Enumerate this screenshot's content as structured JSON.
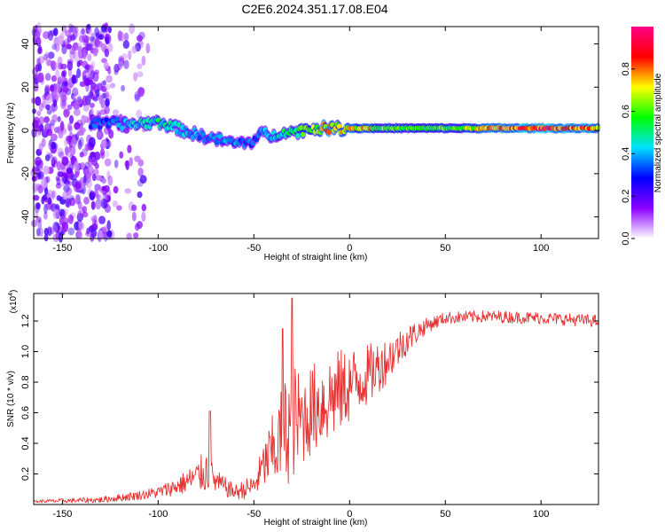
{
  "chart_data": [
    {
      "type": "heatmap",
      "title": "C2E6.2024.351.17.08.E04",
      "xlabel": "Height of straight line (km)",
      "ylabel": "Frequency (Hz)",
      "xlim": [
        -165,
        130
      ],
      "ylim": [
        -50,
        48
      ],
      "xticks": [
        -150,
        -100,
        -50,
        0,
        50,
        100
      ],
      "yticks": [
        40,
        20,
        0,
        -20,
        -40
      ],
      "ridge": {
        "x": [
          -160,
          -150,
          -140,
          -130,
          -120,
          -110,
          -100,
          -90,
          -80,
          -70,
          -60,
          -50,
          -45,
          -40,
          -35,
          -30,
          -20,
          -10,
          0,
          10,
          20,
          40,
          60,
          80,
          100,
          130
        ],
        "y": [
          3,
          3,
          3,
          3,
          3,
          3,
          4,
          1,
          -2,
          -4,
          -6,
          -5,
          -1,
          -3,
          0,
          -1,
          1,
          1,
          1,
          1,
          1,
          1,
          1,
          1,
          1,
          1
        ],
        "amplitude": [
          0.3,
          0.35,
          0.3,
          0.35,
          0.4,
          0.45,
          0.5,
          0.45,
          0.4,
          0.4,
          0.38,
          0.35,
          0.42,
          0.4,
          0.5,
          0.55,
          0.65,
          0.8,
          0.75,
          0.75,
          0.6,
          0.6,
          0.65,
          0.85,
          0.9,
          0.85
        ]
      },
      "colorbar": {
        "label": "Normalized spectral amplitude",
        "ticks": [
          "0.0",
          "0.2",
          "0.4",
          "0.6",
          "0.8"
        ],
        "range": [
          0,
          1
        ],
        "colormap": [
          "#ffffff",
          "#8a00ff",
          "#0000ff",
          "#00e0ff",
          "#00ff00",
          "#ffff00",
          "#ff0000",
          "#ff0088"
        ]
      }
    },
    {
      "type": "line",
      "xlabel": "Height of straight line (km)",
      "ylabel": "SNR (10 * v/v)",
      "multiplier": "(x10",
      "multiplier_exp": "4",
      "xlim": [
        -165,
        130
      ],
      "ylim": [
        0.0,
        1.38
      ],
      "xticks": [
        -150,
        -100,
        -50,
        0,
        50,
        100
      ],
      "yticks": [
        0.2,
        0.4,
        0.6,
        0.8,
        1.0,
        1.2
      ],
      "color": "#e83030",
      "envelope": {
        "x": [
          -165,
          -130,
          -110,
          -100,
          -90,
          -80,
          -75,
          -70,
          -60,
          -50,
          -45,
          -40,
          -35,
          -30,
          -25,
          -20,
          -10,
          0,
          10,
          20,
          30,
          40,
          50,
          70,
          100,
          130
        ],
        "y": [
          0.02,
          0.03,
          0.06,
          0.08,
          0.12,
          0.18,
          0.22,
          0.15,
          0.08,
          0.12,
          0.25,
          0.35,
          0.45,
          0.55,
          0.55,
          0.62,
          0.7,
          0.78,
          0.85,
          0.95,
          1.08,
          1.17,
          1.22,
          1.23,
          1.22,
          1.2
        ],
        "spread": [
          0.01,
          0.02,
          0.03,
          0.04,
          0.06,
          0.1,
          0.15,
          0.08,
          0.05,
          0.08,
          0.15,
          0.25,
          0.35,
          0.4,
          0.3,
          0.3,
          0.3,
          0.25,
          0.2,
          0.15,
          0.1,
          0.05,
          0.04,
          0.04,
          0.04,
          0.04
        ]
      },
      "peaks": [
        {
          "x": -73,
          "y": 0.61
        },
        {
          "x": -30,
          "y": 1.35
        },
        {
          "x": -35,
          "y": 1.15
        }
      ]
    }
  ]
}
